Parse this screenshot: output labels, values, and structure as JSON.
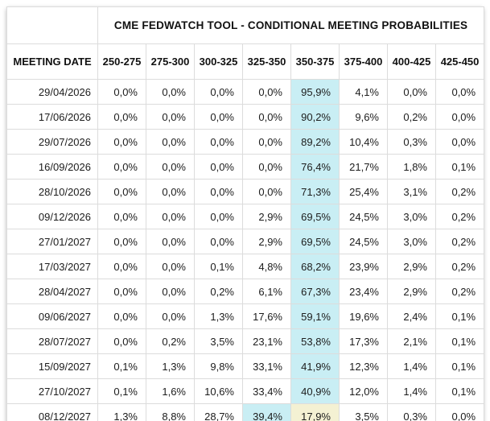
{
  "chart_data": {
    "type": "table",
    "title": "CME FEDWATCH TOOL - CONDITIONAL MEETING PROBABILITIES",
    "row_header": "MEETING DATE",
    "columns": [
      "250-275",
      "275-300",
      "300-325",
      "325-350",
      "350-375",
      "375-400",
      "400-425",
      "425-450"
    ],
    "rows": [
      {
        "date": "29/04/2026",
        "values": [
          "0,0%",
          "0,0%",
          "0,0%",
          "0,0%",
          "95,9%",
          "4,1%",
          "0,0%",
          "0,0%"
        ],
        "highlights": {
          "4": "cyan"
        }
      },
      {
        "date": "17/06/2026",
        "values": [
          "0,0%",
          "0,0%",
          "0,0%",
          "0,0%",
          "90,2%",
          "9,6%",
          "0,2%",
          "0,0%"
        ],
        "highlights": {
          "4": "cyan"
        }
      },
      {
        "date": "29/07/2026",
        "values": [
          "0,0%",
          "0,0%",
          "0,0%",
          "0,0%",
          "89,2%",
          "10,4%",
          "0,3%",
          "0,0%"
        ],
        "highlights": {
          "4": "cyan"
        }
      },
      {
        "date": "16/09/2026",
        "values": [
          "0,0%",
          "0,0%",
          "0,0%",
          "0,0%",
          "76,4%",
          "21,7%",
          "1,8%",
          "0,1%"
        ],
        "highlights": {
          "4": "cyan"
        }
      },
      {
        "date": "28/10/2026",
        "values": [
          "0,0%",
          "0,0%",
          "0,0%",
          "0,0%",
          "71,3%",
          "25,4%",
          "3,1%",
          "0,2%"
        ],
        "highlights": {
          "4": "cyan"
        }
      },
      {
        "date": "09/12/2026",
        "values": [
          "0,0%",
          "0,0%",
          "0,0%",
          "2,9%",
          "69,5%",
          "24,5%",
          "3,0%",
          "0,2%"
        ],
        "highlights": {
          "4": "cyan"
        }
      },
      {
        "date": "27/01/2027",
        "values": [
          "0,0%",
          "0,0%",
          "0,0%",
          "2,9%",
          "69,5%",
          "24,5%",
          "3,0%",
          "0,2%"
        ],
        "highlights": {
          "4": "cyan"
        }
      },
      {
        "date": "17/03/2027",
        "values": [
          "0,0%",
          "0,0%",
          "0,1%",
          "4,8%",
          "68,2%",
          "23,9%",
          "2,9%",
          "0,2%"
        ],
        "highlights": {
          "4": "cyan"
        }
      },
      {
        "date": "28/04/2027",
        "values": [
          "0,0%",
          "0,0%",
          "0,2%",
          "6,1%",
          "67,3%",
          "23,4%",
          "2,9%",
          "0,2%"
        ],
        "highlights": {
          "4": "cyan"
        }
      },
      {
        "date": "09/06/2027",
        "values": [
          "0,0%",
          "0,0%",
          "1,3%",
          "17,6%",
          "59,1%",
          "19,6%",
          "2,4%",
          "0,1%"
        ],
        "highlights": {
          "4": "cyan"
        }
      },
      {
        "date": "28/07/2027",
        "values": [
          "0,0%",
          "0,2%",
          "3,5%",
          "23,1%",
          "53,8%",
          "17,3%",
          "2,1%",
          "0,1%"
        ],
        "highlights": {
          "4": "cyan"
        }
      },
      {
        "date": "15/09/2027",
        "values": [
          "0,1%",
          "1,3%",
          "9,8%",
          "33,1%",
          "41,9%",
          "12,3%",
          "1,4%",
          "0,1%"
        ],
        "highlights": {
          "4": "cyan"
        }
      },
      {
        "date": "27/10/2027",
        "values": [
          "0,1%",
          "1,6%",
          "10,6%",
          "33,4%",
          "40,9%",
          "12,0%",
          "1,4%",
          "0,1%"
        ],
        "highlights": {
          "4": "cyan"
        }
      },
      {
        "date": "08/12/2027",
        "values": [
          "1,3%",
          "8,8%",
          "28,7%",
          "39,4%",
          "17,9%",
          "3,5%",
          "0,3%",
          "0,0%"
        ],
        "highlights": {
          "3": "cyan",
          "4": "yellow"
        }
      }
    ],
    "layout": {
      "grid": "on",
      "value_alignment": "right",
      "decimal_separator": "comma"
    },
    "colors": {
      "highlight_cyan": "#c9eef4",
      "highlight_yellow": "#f4f1d3",
      "grid_line": "#dcdcdc",
      "text": "#1c1c1c",
      "background": "#ffffff"
    }
  }
}
